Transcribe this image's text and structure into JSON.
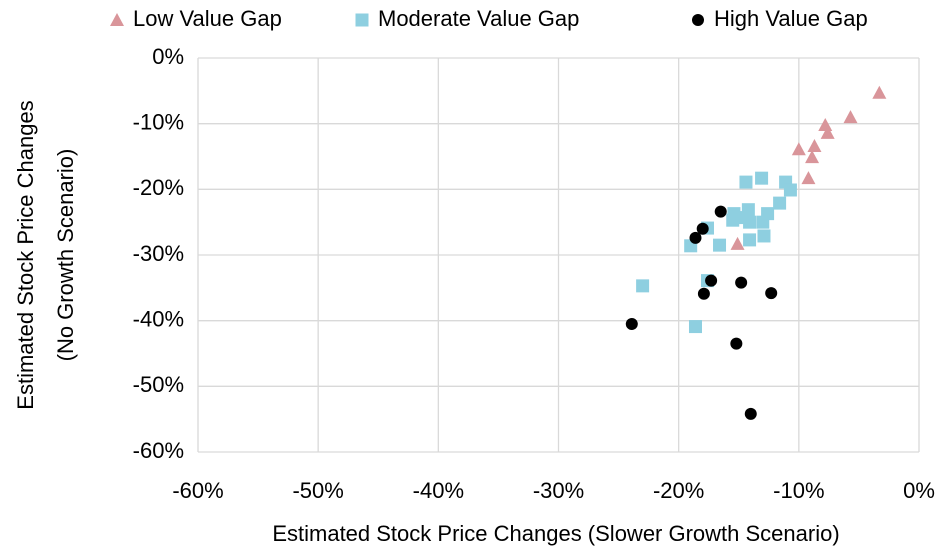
{
  "chart_data": {
    "type": "scatter",
    "x_label": "Estimated Stock Price Changes (Slower Growth Scenario)",
    "y_label": [
      "Estimated Stock Price Changes",
      "(No Growth Scenario)"
    ],
    "xlim": [
      -60,
      0
    ],
    "ylim": [
      -60,
      0
    ],
    "xticks": [
      {
        "value": -60,
        "label": "-60%"
      },
      {
        "value": -50,
        "label": "-50%"
      },
      {
        "value": -40,
        "label": "-40%"
      },
      {
        "value": -30,
        "label": "-30%"
      },
      {
        "value": -20,
        "label": "-20%"
      },
      {
        "value": -10,
        "label": "-10%"
      },
      {
        "value": 0,
        "label": "0%"
      }
    ],
    "yticks": [
      {
        "value": -60,
        "label": "-60%"
      },
      {
        "value": -50,
        "label": "-50%"
      },
      {
        "value": -40,
        "label": "-40%"
      },
      {
        "value": -30,
        "label": "-30%"
      },
      {
        "value": -20,
        "label": "-20%"
      },
      {
        "value": -10,
        "label": "-10%"
      },
      {
        "value": 0,
        "label": "0%"
      }
    ],
    "grid": true,
    "legend": "top",
    "series": [
      {
        "name": "Low Value Gap",
        "color": "#d9959a",
        "marker": "triangle",
        "x": [
          -3.3,
          -5.7,
          -7.8,
          -7.6,
          -8.7,
          -10.0,
          -8.9,
          -9.2,
          -15.1
        ],
        "values": [
          -5.3,
          -9.0,
          -10.2,
          -11.4,
          -13.4,
          -13.9,
          -15.1,
          -18.3,
          -28.3
        ]
      },
      {
        "name": "Moderate Value Gap",
        "color": "#8ecfe0",
        "marker": "square",
        "x": [
          -13.1,
          -14.4,
          -11.1,
          -10.7,
          -11.6,
          -12.6,
          -14.2,
          -15.4,
          -14.9,
          -15.5,
          -14.1,
          -13.0,
          -17.6,
          -14.1,
          -12.9,
          -19.0,
          -16.6,
          -17.6,
          -23.0,
          -18.6
        ],
        "values": [
          -18.3,
          -18.9,
          -18.9,
          -20.1,
          -22.1,
          -23.7,
          -23.1,
          -23.7,
          -24.3,
          -24.7,
          -25.0,
          -25.0,
          -25.9,
          -27.7,
          -27.1,
          -28.6,
          -28.5,
          -33.9,
          -34.7,
          -40.9
        ]
      },
      {
        "name": "High Value Gap",
        "color": "#000000",
        "marker": "circle",
        "x": [
          -16.5,
          -18.0,
          -18.6,
          -17.3,
          -14.8,
          -17.9,
          -12.3,
          -23.9,
          -15.2,
          -14.0
        ],
        "values": [
          -23.4,
          -26.0,
          -27.4,
          -33.9,
          -34.2,
          -35.9,
          -35.8,
          -40.5,
          -43.5,
          -54.2
        ]
      }
    ]
  }
}
